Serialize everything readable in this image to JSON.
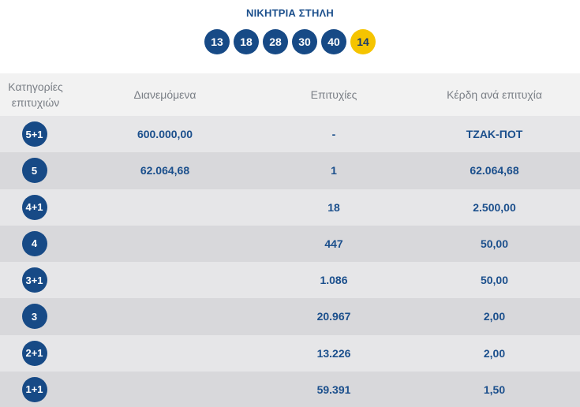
{
  "winning": {
    "title": "ΝΙΚΗΤΡΙΑ ΣΤΗΛΗ",
    "numbers": [
      "13",
      "18",
      "28",
      "30",
      "40"
    ],
    "bonus": "14"
  },
  "table": {
    "headers": {
      "category": "Κατηγορίες επιτυχιών",
      "distributed": "Διανεμόμενα",
      "winners": "Επιτυχίες",
      "prize": "Κέρδη ανά επιτυχία"
    },
    "rows": [
      {
        "category": "5+1",
        "distributed": "600.000,00",
        "winners": "-",
        "prize": "ΤΖΑΚ-ΠΟΤ"
      },
      {
        "category": "5",
        "distributed": "62.064,68",
        "winners": "1",
        "prize": "62.064,68"
      },
      {
        "category": "4+1",
        "distributed": "",
        "winners": "18",
        "prize": "2.500,00"
      },
      {
        "category": "4",
        "distributed": "",
        "winners": "447",
        "prize": "50,00"
      },
      {
        "category": "3+1",
        "distributed": "",
        "winners": "1.086",
        "prize": "50,00"
      },
      {
        "category": "3",
        "distributed": "",
        "winners": "20.967",
        "prize": "2,00"
      },
      {
        "category": "2+1",
        "distributed": "",
        "winners": "13.226",
        "prize": "2,00"
      },
      {
        "category": "1+1",
        "distributed": "",
        "winners": "59.391",
        "prize": "1,50"
      }
    ]
  },
  "colors": {
    "ball": "#174a86",
    "bonus_ball": "#f5c400",
    "text": "#1b4f8c"
  }
}
